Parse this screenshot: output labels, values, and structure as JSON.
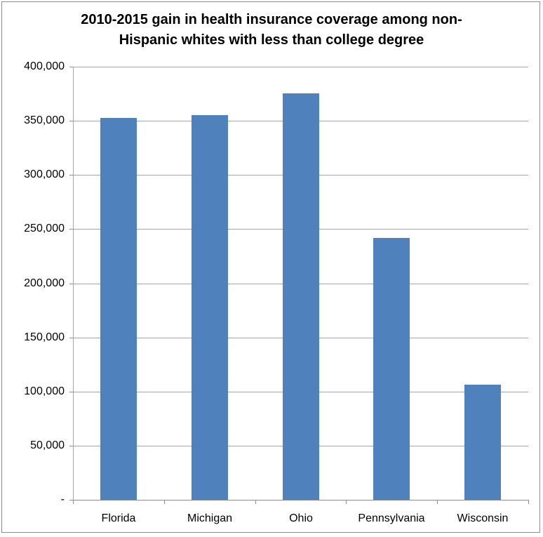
{
  "chart_data": {
    "type": "bar",
    "title": "2010-2015 gain in health insurance coverage among non-Hispanic whites with less than college degree",
    "title_lines": [
      "2010-2015 gain in health insurance coverage among non-",
      "Hispanic whites with less than college degree"
    ],
    "categories": [
      "Florida",
      "Michigan",
      "Ohio",
      "Pennsylvania",
      "Wisconsin"
    ],
    "values": [
      352500,
      355000,
      375500,
      242000,
      106500
    ],
    "xlabel": "",
    "ylabel": "",
    "ylim": [
      0,
      400000
    ],
    "yticks": [
      0,
      50000,
      100000,
      150000,
      200000,
      250000,
      300000,
      350000,
      400000
    ],
    "ytick_labels": [
      "-",
      "50,000",
      "100,000",
      "150,000",
      "200,000",
      "250,000",
      "300,000",
      "350,000",
      "400,000"
    ],
    "grid": true,
    "legend": null,
    "bar_color": "#4f81bd"
  }
}
